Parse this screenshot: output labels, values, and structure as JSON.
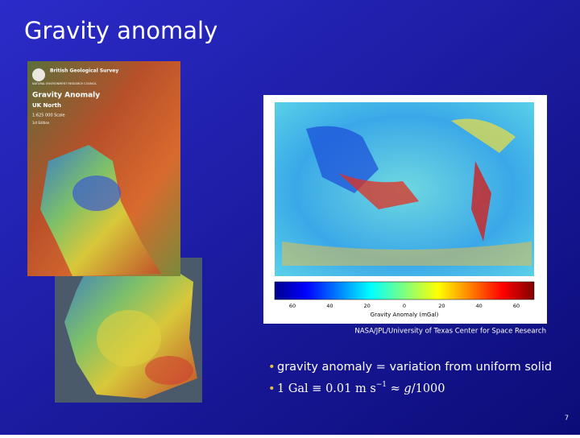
{
  "title": "Gravity anomaly",
  "left_figure": {
    "cover": {
      "publisher": "British Geological Survey",
      "council": "NATURAL ENVIRONMENT RESEARCH COUNCIL",
      "title": "Gravity Anomaly",
      "subtitle": "UK North",
      "scale": "1:625 000 Scale",
      "edition": "1st Edition"
    }
  },
  "right_figure": {
    "colorbar_ticks": [
      "60",
      "40",
      "20",
      "0",
      "20",
      "40",
      "60"
    ],
    "colorbar_label": "Gravity Anomaly (mGal)",
    "caption": "NASA/JPL/University of Texas Center for Space Research"
  },
  "bullets": [
    {
      "text": "gravity anomaly = variation from uniform solid"
    },
    {
      "text": "1 Gal ≡ 0.01 m s",
      "superscript": "−1",
      "rest": " ≈ ",
      "italic": "g",
      "tail": "/1000"
    }
  ],
  "page_number": "7"
}
